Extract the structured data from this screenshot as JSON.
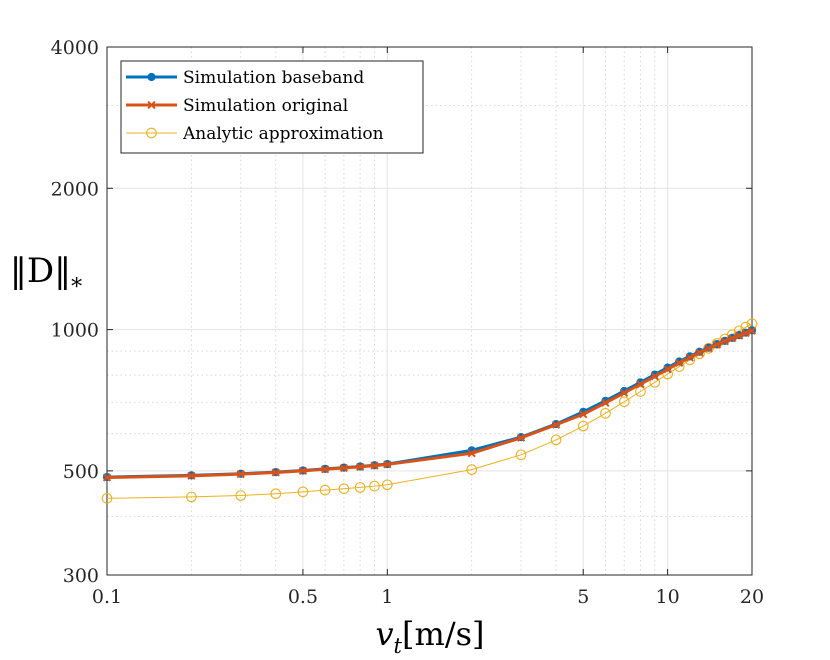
{
  "chart_data": {
    "type": "line",
    "title": "",
    "xlabel": "v_t[m/s]",
    "xlabel_main": "v",
    "xlabel_sub": "t",
    "xlabel_unit": "[m/s]",
    "ylabel": "||D||_*",
    "ylabel_main": "‖D‖",
    "ylabel_sub": "*",
    "xscale": "log",
    "yscale": "log",
    "xlim": [
      0.1,
      20
    ],
    "ylim": [
      300,
      4000
    ],
    "xticks": [
      0.1,
      0.5,
      1,
      5,
      10,
      20
    ],
    "xtick_labels": [
      "0.1",
      "0.5",
      "1",
      "5",
      "10",
      "20"
    ],
    "yticks": [
      300,
      500,
      1000,
      2000,
      4000
    ],
    "ytick_labels": [
      "300",
      "500",
      "1000",
      "2000",
      "4000"
    ],
    "grid": true,
    "legend_position": "top-left",
    "x": [
      0.1,
      0.2,
      0.3,
      0.4,
      0.5,
      0.6,
      0.7,
      0.8,
      0.9,
      1,
      2,
      3,
      4,
      5,
      6,
      7,
      8,
      9,
      10,
      11,
      12,
      13,
      14,
      15,
      16,
      17,
      18,
      19,
      20
    ],
    "series": [
      {
        "name": "Simulation baseband",
        "color": "#0072BD",
        "marker": "filled-circle",
        "values": [
          485,
          489,
          493,
          497,
          501,
          505,
          508,
          511,
          514,
          517,
          553,
          590,
          629,
          668,
          705,
          740,
          772,
          802,
          830,
          855,
          877,
          897,
          915,
          931,
          946,
          960,
          973,
          985,
          996
        ]
      },
      {
        "name": "Simulation original",
        "color": "#D95319",
        "marker": "x",
        "values": [
          484,
          488,
          492,
          496,
          500,
          504,
          507,
          510,
          513,
          516,
          545,
          588,
          627,
          660,
          698,
          733,
          765,
          795,
          823,
          849,
          872,
          893,
          912,
          929,
          944,
          958,
          971,
          983,
          994
        ]
      },
      {
        "name": "Analytic approximation",
        "color": "#EDB120",
        "marker": "open-circle",
        "values": [
          437,
          440,
          443,
          447,
          451,
          455,
          458,
          461,
          464,
          467,
          503,
          541,
          582,
          623,
          663,
          702,
          738,
          772,
          804,
          834,
          862,
          888,
          912,
          934,
          955,
          975,
          994,
          1012,
          1029
        ]
      }
    ]
  }
}
